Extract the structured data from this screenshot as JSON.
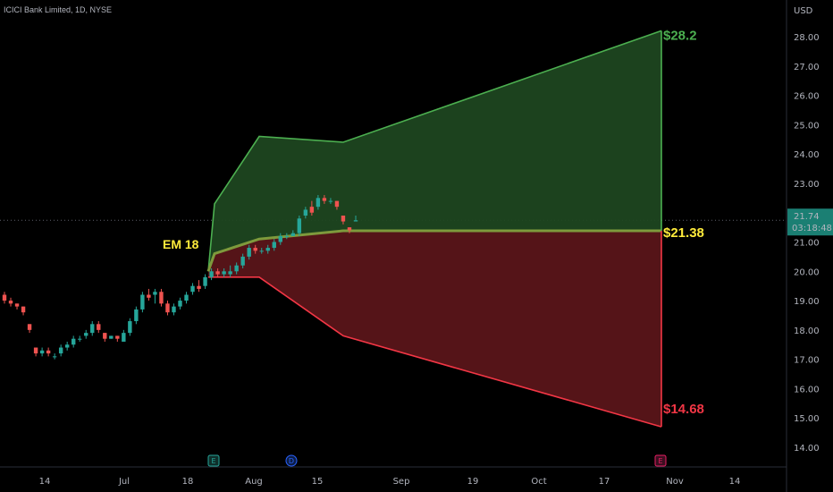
{
  "header": {
    "symbol": "ICICI Bank Limited, 1D, NYSE"
  },
  "axis": {
    "currency": "USD",
    "price_ticks": [
      "28.00",
      "27.00",
      "26.00",
      "25.00",
      "24.00",
      "23.00",
      "22.00",
      "21.00",
      "20.00",
      "19.00",
      "18.00",
      "17.00",
      "16.00",
      "15.00",
      "14.00"
    ],
    "date_ticks": [
      "14",
      "Jul",
      "18",
      "Aug",
      "15",
      "Sep",
      "19",
      "Oct",
      "17",
      "Nov",
      "14"
    ]
  },
  "current_price": {
    "value": "21.74",
    "countdown": "03:18:48"
  },
  "labels": {
    "em": "EM 18",
    "upper": "$28.2",
    "mid": "$21.38",
    "lower": "$14.68"
  },
  "events": [
    "E",
    "D",
    "E"
  ],
  "colors": {
    "up": "#26a69a",
    "down": "#ef5350",
    "upper_line": "#4caf50",
    "lower_line": "#f23645",
    "upper_fill": "#1e4620",
    "lower_fill": "#5a1519",
    "mid_line": "#7e9a3c",
    "mid_label": "#ffeb3b",
    "price_badge": "#1b7f73"
  },
  "chart_data": {
    "type": "candlestick",
    "ylim": [
      13.6,
      29.0
    ],
    "expected_move": {
      "upper": [
        20.0,
        22.3,
        24.6,
        24.4,
        28.2
      ],
      "mid": [
        20.0,
        20.6,
        21.1,
        21.38,
        21.38
      ],
      "lower": [
        19.8,
        19.8,
        19.8,
        17.8,
        14.7
      ],
      "labels": {
        "upper": 28.2,
        "mid": 21.38,
        "lower": 14.68
      }
    },
    "candles": [
      [
        19.2,
        19.3,
        18.9,
        19.0
      ],
      [
        19.0,
        19.1,
        18.8,
        18.9
      ],
      [
        18.9,
        18.9,
        18.7,
        18.8
      ],
      [
        18.8,
        18.8,
        18.5,
        18.6
      ],
      [
        18.2,
        18.2,
        17.9,
        18.0
      ],
      [
        17.4,
        17.4,
        17.1,
        17.2
      ],
      [
        17.2,
        17.4,
        17.1,
        17.3
      ],
      [
        17.3,
        17.4,
        17.1,
        17.2
      ],
      [
        17.1,
        17.2,
        17.0,
        17.1
      ],
      [
        17.2,
        17.5,
        17.1,
        17.4
      ],
      [
        17.4,
        17.6,
        17.3,
        17.5
      ],
      [
        17.5,
        17.8,
        17.4,
        17.7
      ],
      [
        17.7,
        17.8,
        17.6,
        17.7
      ],
      [
        17.8,
        18.0,
        17.7,
        17.9
      ],
      [
        17.9,
        18.3,
        17.8,
        18.2
      ],
      [
        18.2,
        18.3,
        17.9,
        18.0
      ],
      [
        17.9,
        17.9,
        17.6,
        17.7
      ],
      [
        17.7,
        17.8,
        17.7,
        17.8
      ],
      [
        17.8,
        17.8,
        17.6,
        17.7
      ],
      [
        17.6,
        18.0,
        17.6,
        17.9
      ],
      [
        17.9,
        18.4,
        17.8,
        18.3
      ],
      [
        18.3,
        18.8,
        18.2,
        18.7
      ],
      [
        18.7,
        19.3,
        18.6,
        19.2
      ],
      [
        19.2,
        19.4,
        19.0,
        19.1
      ],
      [
        19.2,
        19.4,
        18.9,
        19.3
      ],
      [
        19.3,
        19.4,
        18.8,
        18.9
      ],
      [
        18.9,
        19.0,
        18.5,
        18.6
      ],
      [
        18.6,
        18.9,
        18.5,
        18.8
      ],
      [
        18.8,
        19.1,
        18.7,
        19.0
      ],
      [
        19.0,
        19.3,
        18.9,
        19.2
      ],
      [
        19.3,
        19.6,
        19.2,
        19.5
      ],
      [
        19.5,
        19.7,
        19.3,
        19.4
      ],
      [
        19.5,
        19.9,
        19.4,
        19.8
      ],
      [
        19.8,
        20.1,
        19.7,
        20.0
      ],
      [
        20.0,
        20.1,
        19.8,
        19.9
      ],
      [
        19.9,
        20.1,
        19.8,
        20.0
      ],
      [
        19.9,
        20.2,
        19.8,
        20.0
      ],
      [
        20.0,
        20.3,
        19.9,
        20.2
      ],
      [
        20.2,
        20.6,
        20.1,
        20.5
      ],
      [
        20.5,
        20.9,
        20.4,
        20.8
      ],
      [
        20.8,
        20.9,
        20.6,
        20.7
      ],
      [
        20.7,
        20.8,
        20.6,
        20.7
      ],
      [
        20.7,
        20.9,
        20.6,
        20.8
      ],
      [
        20.8,
        21.1,
        20.7,
        21.0
      ],
      [
        21.0,
        21.3,
        20.9,
        21.2
      ],
      [
        21.2,
        21.3,
        21.1,
        21.2
      ],
      [
        21.2,
        21.4,
        21.2,
        21.3
      ],
      [
        21.3,
        21.9,
        21.2,
        21.8
      ],
      [
        21.9,
        22.2,
        21.8,
        22.1
      ],
      [
        22.2,
        22.4,
        21.9,
        22.0
      ],
      [
        22.2,
        22.6,
        22.1,
        22.5
      ],
      [
        22.5,
        22.6,
        22.3,
        22.4
      ],
      [
        22.4,
        22.5,
        22.3,
        22.4
      ],
      [
        22.4,
        22.4,
        22.1,
        22.2
      ],
      [
        21.9,
        21.9,
        21.6,
        21.7
      ],
      [
        21.5,
        21.5,
        21.3,
        21.4
      ],
      [
        21.7,
        21.9,
        21.7,
        21.74
      ]
    ]
  }
}
